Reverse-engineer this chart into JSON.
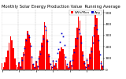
{
  "title": "Monthly Solar Energy Production Value  Running Average",
  "bar_color": "#ff0000",
  "avg_color": "#0000cc",
  "background": "#ffffff",
  "grid_color": "#888888",
  "ylim": [
    0,
    530
  ],
  "yticks": [
    0,
    100,
    200,
    300,
    400,
    500
  ],
  "ytick_labels": [
    "0",
    "100",
    "200",
    "300",
    "400",
    "500"
  ],
  "values": [
    55,
    20,
    60,
    110,
    170,
    240,
    290,
    260,
    190,
    100,
    45,
    18,
    65,
    28,
    110,
    150,
    210,
    270,
    340,
    310,
    235,
    120,
    52,
    22,
    75,
    35,
    120,
    165,
    240,
    310,
    420,
    380,
    265,
    140,
    58,
    28,
    85,
    38,
    55,
    12,
    100,
    160,
    195,
    180,
    140,
    85,
    38,
    12,
    70,
    45,
    130,
    180,
    280,
    370,
    465,
    430,
    300,
    160,
    75,
    30,
    100,
    50,
    140,
    195,
    290,
    380,
    490,
    450,
    310,
    168,
    80,
    38
  ],
  "running_avg": [
    null,
    null,
    null,
    null,
    null,
    null,
    null,
    null,
    null,
    null,
    null,
    null,
    60,
    24,
    85,
    130,
    190,
    255,
    315,
    285,
    212,
    110,
    48,
    20,
    68,
    28,
    97,
    142,
    207,
    273,
    385,
    350,
    250,
    120,
    52,
    23,
    75,
    34,
    78,
    146,
    183,
    247,
    318,
    290,
    213,
    115,
    49,
    21,
    77,
    36,
    85,
    152,
    207,
    277,
    355,
    323,
    235,
    128,
    54,
    23,
    82,
    38,
    107,
    163,
    237,
    303,
    392,
    358,
    255,
    133,
    58,
    27
  ],
  "n_bars": 72,
  "legend_labels": [
    "kWh/Mon",
    "Avg"
  ],
  "legend_colors": [
    "#ff0000",
    "#0000cc"
  ],
  "title_fontsize": 3.8,
  "tick_fontsize": 3.2,
  "legend_fontsize": 3.0
}
